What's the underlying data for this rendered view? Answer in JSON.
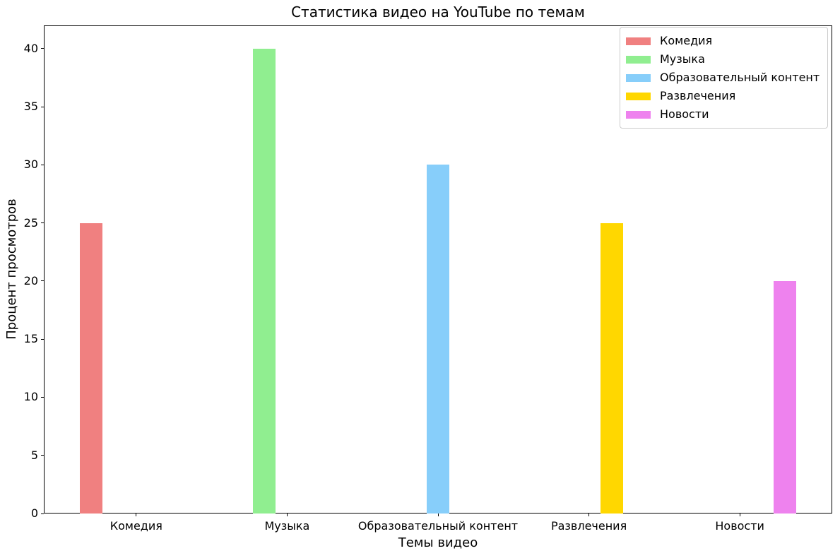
{
  "chart_data": {
    "type": "bar",
    "title": "Статистика видео на YouTube по темам",
    "xlabel": "Темы видео",
    "ylabel": "Процент просмотров",
    "categories": [
      "Комедия",
      "Музыка",
      "Образовательный контент",
      "Развлечения",
      "Новости"
    ],
    "values": [
      25,
      40,
      30,
      25,
      20
    ],
    "colors": [
      "#f08080",
      "#90ee90",
      "#87cefa",
      "#ffd700",
      "#ee82ee"
    ],
    "yticks": [
      0,
      5,
      10,
      15,
      20,
      25,
      30,
      35,
      40
    ],
    "ylim": [
      0,
      42
    ],
    "xlim": [
      -0.6125,
      4.6125
    ],
    "bar_width_fraction": 0.15,
    "grid": false,
    "legend": {
      "position": "upper-right",
      "entries": [
        {
          "label": "Комедия",
          "color": "#f08080"
        },
        {
          "label": "Музыка",
          "color": "#90ee90"
        },
        {
          "label": "Образовательный контент",
          "color": "#87cefa"
        },
        {
          "label": "Развлечения",
          "color": "#ffd700"
        },
        {
          "label": "Новости",
          "color": "#ee82ee"
        }
      ]
    }
  }
}
